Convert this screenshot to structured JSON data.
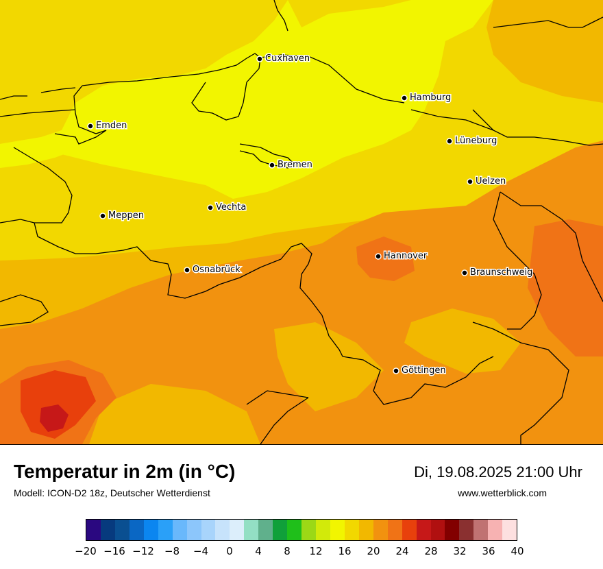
{
  "title": "Temperatur in 2m (in °C)",
  "model": "Modell: ICON-D2 18z, Deutscher Wetterdienst",
  "datetime": "Di, 19.08.2025 21:00 Uhr",
  "website": "www.wetterblick.com",
  "cities": [
    {
      "name": "Cuxhaven"
    },
    {
      "name": "Hamburg"
    },
    {
      "name": "Emden"
    },
    {
      "name": "Lüneburg"
    },
    {
      "name": "Bremen"
    },
    {
      "name": "Uelzen"
    },
    {
      "name": "Meppen"
    },
    {
      "name": "Vechta"
    },
    {
      "name": "Hannover"
    },
    {
      "name": "Osnabrück"
    },
    {
      "name": "Braunschweig"
    },
    {
      "name": "Göttingen"
    }
  ],
  "legend": {
    "colors": [
      "#2a0880",
      "#073a7e",
      "#0a4f91",
      "#0a67c4",
      "#0b86f0",
      "#2aa0f8",
      "#69b8fb",
      "#8cc6fb",
      "#a8d4fb",
      "#c7e3fb",
      "#dceefb",
      "#93dfc4",
      "#60b08c",
      "#10a03a",
      "#1fbf1a",
      "#9cd816",
      "#d2ea0a",
      "#f2f500",
      "#f2d800",
      "#f2b800",
      "#f2920f",
      "#f07316",
      "#e8400c",
      "#c61818",
      "#b01010",
      "#820000",
      "#8a3030",
      "#c07272",
      "#f7b2b2",
      "#fde0e0"
    ],
    "tick_labels": [
      "−20",
      "−16",
      "−12",
      "−8",
      "−4",
      "0",
      "4",
      "8",
      "12",
      "16",
      "20",
      "24",
      "28",
      "32",
      "36",
      "40"
    ]
  },
  "temperature_colors": {
    "c17": "#f2f500",
    "c18": "#f2d800",
    "c19": "#f2b800",
    "c21": "#f2920f",
    "c23": "#f07316",
    "c25": "#e8400c",
    "c27": "#c61818",
    "c29": "#a81010"
  }
}
